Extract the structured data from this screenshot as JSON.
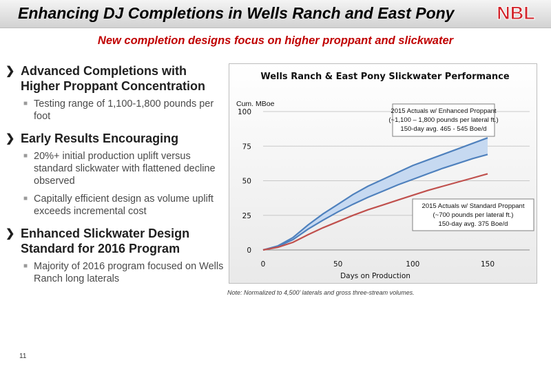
{
  "header": {
    "title": "Enhancing DJ Completions in Wells Ranch and East Pony",
    "logo_text": "NBL"
  },
  "subtitle": "New completion designs focus on higher proppant and slickwater",
  "bullets": [
    {
      "heading": "Advanced Completions with Higher Proppant Concentration",
      "subs": [
        "Testing range of 1,100-1,800 pounds per foot"
      ]
    },
    {
      "heading": "Early Results Encouraging",
      "subs": [
        "20%+ initial production uplift versus standard slickwater with flattened decline observed",
        "Capitally efficient design as volume uplift exceeds incremental cost"
      ]
    },
    {
      "heading": "Enhanced Slickwater Design Standard for 2016 Program",
      "subs": [
        "Majority of 2016 program focused on Wells Ranch long laterals"
      ]
    }
  ],
  "chart_data": {
    "type": "line",
    "title": "Wells Ranch & East Pony Slickwater Performance",
    "xlabel": "Days on Production",
    "ylabel": "Cum. MBoe",
    "xlim": [
      0,
      150
    ],
    "ylim": [
      0,
      100
    ],
    "xticks": [
      "0",
      "50",
      "100",
      "150"
    ],
    "yticks": [
      "0",
      "25",
      "50",
      "75",
      "100"
    ],
    "x": [
      0,
      10,
      20,
      30,
      40,
      50,
      60,
      70,
      80,
      90,
      100,
      110,
      120,
      130,
      140,
      150
    ],
    "series": [
      {
        "name": "",
        "color": "#4f81bd",
        "values": [
          0,
          3,
          9,
          18,
          26,
          33,
          40,
          46,
          51,
          56,
          61,
          65,
          69,
          73,
          77,
          81
        ]
      },
      {
        "name": "",
        "color": "#4f81bd",
        "values": [
          0,
          2.5,
          7.5,
          15,
          21.5,
          27.5,
          33,
          38,
          42.5,
          47,
          51,
          55,
          59,
          62.5,
          66,
          69
        ]
      },
      {
        "name": "",
        "color": "#c0504d",
        "values": [
          0,
          2,
          5.5,
          11,
          16,
          20.5,
          25,
          29,
          32.5,
          36,
          39.5,
          43,
          46,
          49,
          52,
          55
        ]
      }
    ],
    "band_fill": "#c6d9f1",
    "annotations": [
      {
        "lines": [
          "2015 Actuals w/ Enhanced Proppant",
          "(~1,100 – 1,800 pounds per lateral ft.)",
          "150-day avg. 465 - 545 Boe/d"
        ]
      },
      {
        "lines": [
          "2015 Actuals w/ Standard Proppant",
          "(~700 pounds per lateral ft.)",
          "150-day avg. 375 Boe/d"
        ]
      }
    ]
  },
  "note": "Note: Normalized to 4,500’ laterals and gross three-stream volumes.",
  "page_number": "11",
  "colors": {
    "title_red": "#c00000",
    "logo_red": "#d2232a",
    "enhanced": "#4f81bd",
    "standard": "#c0504d"
  }
}
